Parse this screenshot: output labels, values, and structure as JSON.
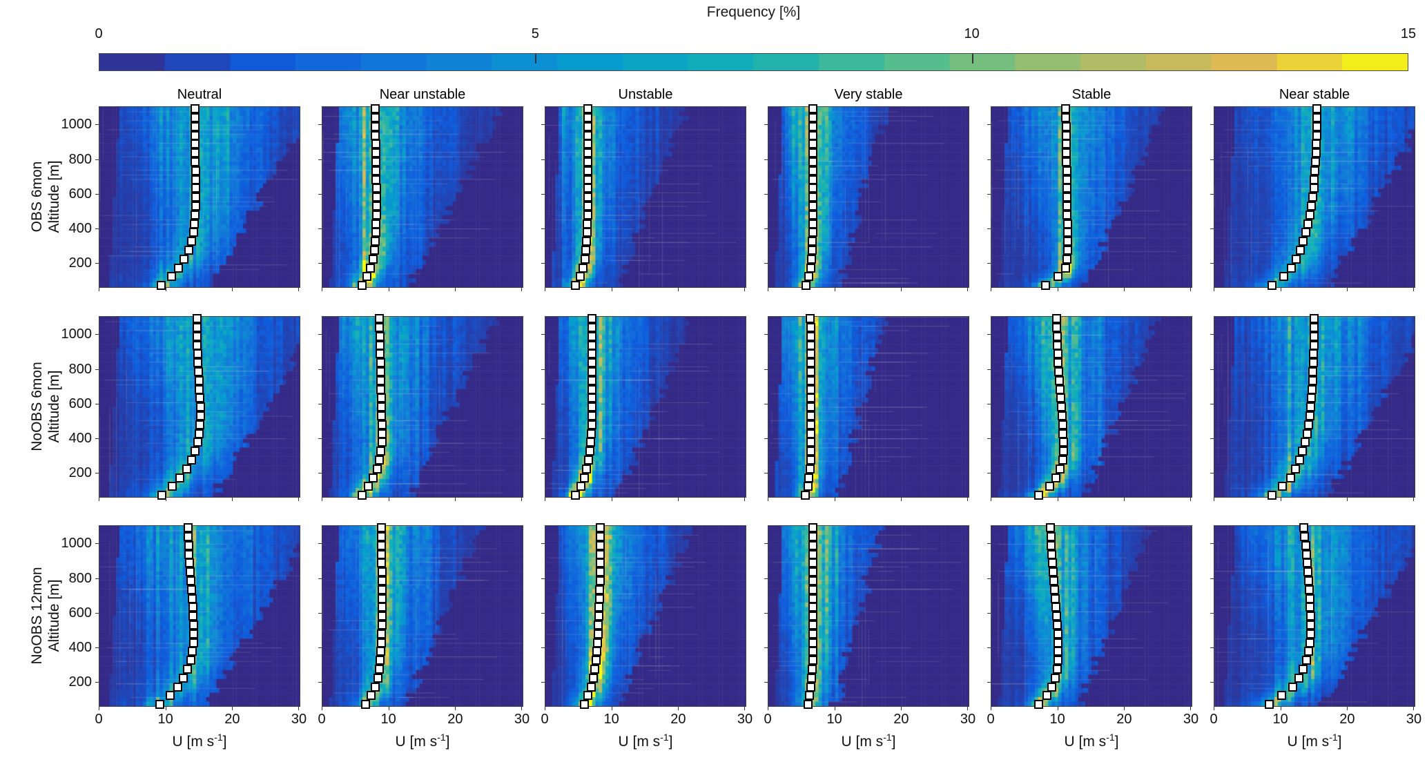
{
  "colorbar": {
    "title": "Frequency [%]",
    "ticks": [
      0,
      5,
      10,
      15
    ],
    "range": [
      0,
      15
    ],
    "steps": 20,
    "colormap": [
      {
        "t": 0.0,
        "c": "#352a87"
      },
      {
        "t": 0.13,
        "c": "#0f5cdd"
      },
      {
        "t": 0.25,
        "c": "#127dd8"
      },
      {
        "t": 0.38,
        "c": "#079ccf"
      },
      {
        "t": 0.5,
        "c": "#15b1b4"
      },
      {
        "t": 0.63,
        "c": "#59bd8c"
      },
      {
        "t": 0.75,
        "c": "#a5be6b"
      },
      {
        "t": 0.88,
        "c": "#e1b952"
      },
      {
        "t": 1.0,
        "c": "#f9fb0e"
      }
    ]
  },
  "columns": [
    "Neutral",
    "Near unstable",
    "Unstable",
    "Very stable",
    "Stable",
    "Near stable"
  ],
  "rows": [
    {
      "line1": "OBS 6mon",
      "line2": "Altitude [m]"
    },
    {
      "line1": "NoOBS 6mon",
      "line2": "Altitude [m]"
    },
    {
      "line1": "NoOBS 12mon",
      "line2": "Altitude [m]"
    }
  ],
  "axes": {
    "x": {
      "label": {
        "pre": "U [m s",
        "sup": "-1",
        "post": "]"
      },
      "ticks": [
        0,
        10,
        20,
        30
      ],
      "range": [
        0,
        30
      ]
    },
    "y": {
      "ticks": [
        200,
        400,
        600,
        800,
        1000
      ],
      "range": [
        65,
        1105
      ]
    }
  },
  "marker_style": {
    "shape": "square",
    "fill": "#ffffff",
    "edge": "#000000",
    "size": 13
  },
  "chart_data": {
    "type": "heatmap",
    "title": "Wind speed frequency distributions by altitude and stability class",
    "x_variable": "wind speed U [m/s]",
    "y_variable": "altitude [m]",
    "value_variable": "frequency [%]",
    "z_levels": [
      70,
      121,
      172,
      223,
      274,
      325,
      376,
      427,
      478,
      529,
      580,
      631,
      682,
      733,
      784,
      835,
      886,
      937,
      988,
      1039,
      1090
    ],
    "panels": [
      {
        "row": 0,
        "col": 0,
        "experiment": "OBS 6mon",
        "stability": "Neutral",
        "profile_u": [
          9.4,
          10.9,
          11.9,
          12.8,
          13.5,
          13.9,
          14.2,
          14.35,
          14.45,
          14.5,
          14.5,
          14.5,
          14.5,
          14.5,
          14.45,
          14.45,
          14.4,
          14.4,
          14.4,
          14.4,
          14.4
        ],
        "density": {
          "pk_lo": 6.0,
          "pk_hi": 2.6,
          "sg_lo": 1.3,
          "sg_hi": 4.0,
          "bg": 2.0,
          "bgs_lo": 5.0,
          "bgs_hi": 8.0,
          "umax_lo": 16.5,
          "umax_hi": 32,
          "umin_lo": 1.5,
          "umin_hi": 3.0
        }
      },
      {
        "row": 0,
        "col": 1,
        "experiment": "OBS 6mon",
        "stability": "Near unstable",
        "profile_u": [
          6.0,
          6.8,
          7.3,
          7.7,
          7.9,
          8.05,
          8.1,
          8.15,
          8.2,
          8.2,
          8.2,
          8.2,
          8.15,
          8.15,
          8.1,
          8.1,
          8.1,
          8.05,
          8.05,
          8.0,
          8.0
        ],
        "density": {
          "pk_lo": 13,
          "pk_hi": 3.5,
          "sg_lo": 1.0,
          "sg_hi": 3.0,
          "bg": 2.2,
          "bgs_lo": 4.0,
          "bgs_hi": 7.0,
          "umax_lo": 13,
          "umax_hi": 27,
          "umin_lo": 1.2,
          "umin_hi": 2.5
        }
      },
      {
        "row": 0,
        "col": 2,
        "experiment": "OBS 6mon",
        "stability": "Unstable",
        "profile_u": [
          4.6,
          5.3,
          5.7,
          6.0,
          6.2,
          6.3,
          6.35,
          6.4,
          6.45,
          6.5,
          6.5,
          6.5,
          6.5,
          6.5,
          6.5,
          6.5,
          6.5,
          6.5,
          6.5,
          6.5,
          6.5
        ],
        "density": {
          "pk_lo": 14,
          "pk_hi": 5.5,
          "sg_lo": 0.9,
          "sg_hi": 2.0,
          "bg": 2.0,
          "bgs_lo": 3.0,
          "bgs_hi": 5.5,
          "umax_lo": 11,
          "umax_hi": 21,
          "umin_lo": 1.0,
          "umin_hi": 2.2
        }
      },
      {
        "row": 0,
        "col": 3,
        "experiment": "OBS 6mon",
        "stability": "Very stable",
        "profile_u": [
          5.7,
          6.2,
          6.5,
          6.6,
          6.7,
          6.7,
          6.75,
          6.75,
          6.8,
          6.8,
          6.8,
          6.8,
          6.8,
          6.8,
          6.8,
          6.8,
          6.8,
          6.8,
          6.8,
          6.8,
          6.8
        ],
        "density": {
          "pk_lo": 12,
          "pk_hi": 6.0,
          "sg_lo": 0.9,
          "sg_hi": 2.2,
          "bg": 1.8,
          "bgs_lo": 2.8,
          "bgs_hi": 5.0,
          "umax_lo": 11,
          "umax_hi": 17.5,
          "umin_lo": 1.0,
          "umin_hi": 2.2
        }
      },
      {
        "row": 0,
        "col": 4,
        "experiment": "OBS 6mon",
        "stability": "Stable",
        "profile_u": [
          8.2,
          10.1,
          11.2,
          11.4,
          11.5,
          11.5,
          11.5,
          11.5,
          11.45,
          11.45,
          11.4,
          11.4,
          11.4,
          11.4,
          11.35,
          11.35,
          11.3,
          11.3,
          11.3,
          11.25,
          11.2
        ],
        "density": {
          "pk_lo": 11,
          "pk_hi": 4.0,
          "sg_lo": 1.0,
          "sg_hi": 2.8,
          "bg": 2.2,
          "bgs_lo": 3.5,
          "bgs_hi": 6.5,
          "umax_lo": 14,
          "umax_hi": 26,
          "umin_lo": 1.2,
          "umin_hi": 2.5
        }
      },
      {
        "row": 0,
        "col": 5,
        "experiment": "OBS 6mon",
        "stability": "Near stable",
        "profile_u": [
          8.7,
          10.5,
          11.6,
          12.4,
          13.0,
          13.4,
          13.8,
          14.1,
          14.4,
          14.6,
          14.8,
          15.0,
          15.1,
          15.2,
          15.3,
          15.35,
          15.4,
          15.45,
          15.5,
          15.5,
          15.5
        ],
        "density": {
          "pk_lo": 6.5,
          "pk_hi": 2.8,
          "sg_lo": 1.4,
          "sg_hi": 4.0,
          "bg": 2.0,
          "bgs_lo": 4.5,
          "bgs_hi": 8.0,
          "umax_lo": 17,
          "umax_hi": 32,
          "umin_lo": 1.5,
          "umin_hi": 3.2
        }
      },
      {
        "row": 1,
        "col": 0,
        "experiment": "NoOBS 6mon",
        "stability": "Neutral",
        "profile_u": [
          9.5,
          11.0,
          12.2,
          13.2,
          13.9,
          14.4,
          14.8,
          15.0,
          15.2,
          15.3,
          15.3,
          15.2,
          15.1,
          15.0,
          14.9,
          14.8,
          14.8,
          14.7,
          14.7,
          14.7,
          14.7
        ],
        "density": {
          "pk_lo": 5.5,
          "pk_hi": 2.4,
          "sg_lo": 1.4,
          "sg_hi": 4.5,
          "bg": 2.0,
          "bgs_lo": 5.0,
          "bgs_hi": 8.5,
          "umax_lo": 17,
          "umax_hi": 33,
          "umin_lo": 1.5,
          "umin_hi": 3.0
        }
      },
      {
        "row": 1,
        "col": 1,
        "experiment": "NoOBS 6mon",
        "stability": "Near unstable",
        "profile_u": [
          6.1,
          7.0,
          7.7,
          8.3,
          8.6,
          8.8,
          9.0,
          9.0,
          9.0,
          8.95,
          8.9,
          8.9,
          8.85,
          8.85,
          8.8,
          8.8,
          8.75,
          8.7,
          8.7,
          8.65,
          8.6
        ],
        "density": {
          "pk_lo": 12,
          "pk_hi": 3.8,
          "sg_lo": 1.0,
          "sg_hi": 3.0,
          "bg": 2.2,
          "bgs_lo": 4.0,
          "bgs_hi": 7.0,
          "umax_lo": 13,
          "umax_hi": 26,
          "umin_lo": 1.2,
          "umin_hi": 2.5
        }
      },
      {
        "row": 1,
        "col": 2,
        "experiment": "NoOBS 6mon",
        "stability": "Unstable",
        "profile_u": [
          4.6,
          5.4,
          5.9,
          6.3,
          6.6,
          6.8,
          6.9,
          7.0,
          7.05,
          7.1,
          7.1,
          7.1,
          7.1,
          7.1,
          7.1,
          7.1,
          7.1,
          7.1,
          7.1,
          7.1,
          7.1
        ],
        "density": {
          "pk_lo": 15,
          "pk_hi": 5.5,
          "sg_lo": 0.9,
          "sg_hi": 2.1,
          "bg": 2.0,
          "bgs_lo": 3.0,
          "bgs_hi": 5.5,
          "umax_lo": 11,
          "umax_hi": 22,
          "umin_lo": 1.0,
          "umin_hi": 2.2
        }
      },
      {
        "row": 1,
        "col": 3,
        "experiment": "NoOBS 6mon",
        "stability": "Very stable",
        "profile_u": [
          5.6,
          6.0,
          6.2,
          6.4,
          6.5,
          6.5,
          6.5,
          6.5,
          6.5,
          6.5,
          6.5,
          6.5,
          6.5,
          6.5,
          6.5,
          6.5,
          6.5,
          6.5,
          6.45,
          6.45,
          6.4
        ],
        "density": {
          "pk_lo": 8.0,
          "pk_hi": 4.5,
          "sg_lo": 1.0,
          "sg_hi": 2.4,
          "bg": 2.2,
          "bgs_lo": 3.0,
          "bgs_hi": 5.5,
          "umax_lo": 10.5,
          "umax_hi": 17.5,
          "umin_lo": 1.0,
          "umin_hi": 2.2
        }
      },
      {
        "row": 1,
        "col": 4,
        "experiment": "NoOBS 6mon",
        "stability": "Stable",
        "profile_u": [
          7.2,
          8.8,
          9.8,
          10.4,
          10.8,
          10.9,
          10.9,
          10.85,
          10.8,
          10.7,
          10.6,
          10.5,
          10.4,
          10.3,
          10.2,
          10.1,
          10.05,
          10.0,
          9.95,
          9.9,
          9.9
        ],
        "density": {
          "pk_lo": 11,
          "pk_hi": 4.0,
          "sg_lo": 1.0,
          "sg_hi": 2.8,
          "bg": 2.2,
          "bgs_lo": 3.5,
          "bgs_hi": 6.5,
          "umax_lo": 14,
          "umax_hi": 25,
          "umin_lo": 1.2,
          "umin_hi": 2.5
        }
      },
      {
        "row": 1,
        "col": 5,
        "experiment": "NoOBS 6mon",
        "stability": "Near stable",
        "profile_u": [
          8.7,
          10.3,
          11.5,
          12.3,
          12.9,
          13.3,
          13.7,
          14.0,
          14.2,
          14.4,
          14.5,
          14.6,
          14.7,
          14.8,
          14.85,
          14.9,
          14.95,
          15.0,
          15.0,
          15.0,
          15.0
        ],
        "density": {
          "pk_lo": 6.5,
          "pk_hi": 2.8,
          "sg_lo": 1.4,
          "sg_hi": 4.0,
          "bg": 2.0,
          "bgs_lo": 4.5,
          "bgs_hi": 8.0,
          "umax_lo": 17,
          "umax_hi": 32,
          "umin_lo": 1.5,
          "umin_hi": 3.2
        }
      },
      {
        "row": 2,
        "col": 0,
        "experiment": "NoOBS 12mon",
        "stability": "Neutral",
        "profile_u": [
          9.2,
          10.7,
          11.8,
          12.7,
          13.3,
          13.8,
          14.0,
          14.2,
          14.2,
          14.2,
          14.15,
          14.1,
          14.0,
          13.9,
          13.8,
          13.7,
          13.6,
          13.5,
          13.45,
          13.4,
          13.35
        ],
        "density": {
          "pk_lo": 5.5,
          "pk_hi": 2.4,
          "sg_lo": 1.4,
          "sg_hi": 4.5,
          "bg": 2.0,
          "bgs_lo": 5.0,
          "bgs_hi": 8.5,
          "umax_lo": 16,
          "umax_hi": 32,
          "umin_lo": 1.5,
          "umin_hi": 3.0
        }
      },
      {
        "row": 2,
        "col": 1,
        "experiment": "NoOBS 12mon",
        "stability": "Near unstable",
        "profile_u": [
          6.6,
          7.4,
          8.0,
          8.4,
          8.6,
          8.75,
          8.85,
          8.9,
          8.95,
          9.0,
          9.0,
          9.0,
          9.0,
          9.0,
          9.0,
          9.0,
          8.95,
          8.95,
          8.9,
          8.9,
          8.9
        ],
        "density": {
          "pk_lo": 9.5,
          "pk_hi": 4.5,
          "sg_lo": 1.0,
          "sg_hi": 2.6,
          "bg": 2.2,
          "bgs_lo": 3.5,
          "bgs_hi": 6.0,
          "umax_lo": 12.5,
          "umax_hi": 24,
          "umin_lo": 1.2,
          "umin_hi": 2.5
        }
      },
      {
        "row": 2,
        "col": 2,
        "experiment": "NoOBS 12mon",
        "stability": "Unstable",
        "profile_u": [
          5.9,
          6.5,
          7.0,
          7.3,
          7.5,
          7.7,
          7.8,
          7.9,
          8.0,
          8.05,
          8.1,
          8.15,
          8.2,
          8.25,
          8.3,
          8.3,
          8.3,
          8.3,
          8.3,
          8.3,
          8.3
        ],
        "density": {
          "pk_lo": 12,
          "pk_hi": 6.5,
          "sg_lo": 1.0,
          "sg_hi": 2.2,
          "bg": 2.0,
          "bgs_lo": 3.0,
          "bgs_hi": 5.5,
          "umax_lo": 11,
          "umax_hi": 22,
          "umin_lo": 1.0,
          "umin_hi": 2.2
        }
      },
      {
        "row": 2,
        "col": 3,
        "experiment": "NoOBS 12mon",
        "stability": "Very stable",
        "profile_u": [
          6.0,
          6.3,
          6.5,
          6.6,
          6.7,
          6.75,
          6.8,
          6.8,
          6.8,
          6.8,
          6.8,
          6.8,
          6.8,
          6.8,
          6.8,
          6.8,
          6.8,
          6.8,
          6.8,
          6.8,
          6.8
        ],
        "density": {
          "pk_lo": 8.0,
          "pk_hi": 5.0,
          "sg_lo": 1.0,
          "sg_hi": 2.3,
          "bg": 2.2,
          "bgs_lo": 3.0,
          "bgs_hi": 5.5,
          "umax_lo": 10,
          "umax_hi": 17,
          "umin_lo": 1.0,
          "umin_hi": 2.2
        }
      },
      {
        "row": 2,
        "col": 4,
        "experiment": "NoOBS 12mon",
        "stability": "Stable",
        "profile_u": [
          7.2,
          8.4,
          9.2,
          9.7,
          10.0,
          10.1,
          10.1,
          10.1,
          10.05,
          10.0,
          9.9,
          9.8,
          9.7,
          9.6,
          9.5,
          9.4,
          9.3,
          9.2,
          9.1,
          9.0,
          8.9
        ],
        "density": {
          "pk_lo": 9.5,
          "pk_hi": 4.2,
          "sg_lo": 1.0,
          "sg_hi": 2.8,
          "bg": 2.2,
          "bgs_lo": 3.5,
          "bgs_hi": 6.0,
          "umax_lo": 13,
          "umax_hi": 24,
          "umin_lo": 1.2,
          "umin_hi": 2.5
        }
      },
      {
        "row": 2,
        "col": 5,
        "experiment": "NoOBS 12mon",
        "stability": "Near stable",
        "profile_u": [
          8.3,
          10.2,
          11.8,
          12.8,
          13.4,
          13.9,
          14.2,
          14.4,
          14.5,
          14.5,
          14.5,
          14.45,
          14.4,
          14.3,
          14.2,
          14.1,
          14.0,
          13.9,
          13.8,
          13.6,
          13.5
        ],
        "density": {
          "pk_lo": 6.5,
          "pk_hi": 3.0,
          "sg_lo": 1.4,
          "sg_hi": 4.0,
          "bg": 2.0,
          "bgs_lo": 4.5,
          "bgs_hi": 8.0,
          "umax_lo": 16,
          "umax_hi": 32,
          "umin_lo": 1.5,
          "umin_hi": 3.2
        }
      }
    ]
  }
}
